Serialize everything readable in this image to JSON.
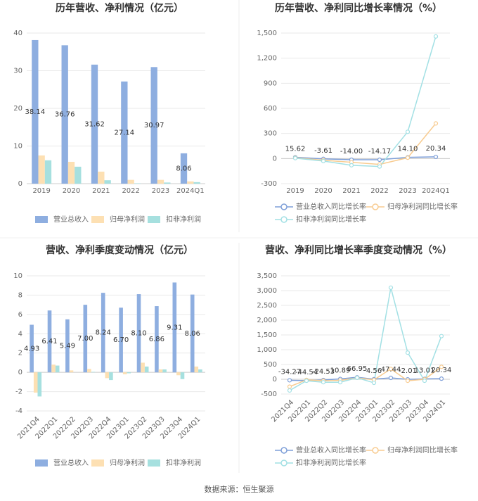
{
  "chart_data": [
    {
      "type": "bar",
      "title": "历年营收、净利情况（亿元）",
      "categories": [
        "2019",
        "2020",
        "2021",
        "2022",
        "2023",
        "2024Q1"
      ],
      "ylim": [
        0,
        40
      ],
      "yticks": [
        0,
        10,
        20,
        30,
        40
      ],
      "grid": true,
      "series": [
        {
          "name": "营业总收入",
          "color": "#8eaee0",
          "labels": true,
          "values": [
            38.14,
            36.76,
            31.62,
            27.14,
            30.97,
            8.06
          ]
        },
        {
          "name": "归母净利润",
          "color": "#fde0b3",
          "values": [
            7.5,
            5.8,
            3.2,
            1.0,
            1.0,
            0.6
          ]
        },
        {
          "name": "扣非净利润",
          "color": "#a6e0df",
          "values": [
            6.2,
            4.5,
            0.9,
            0.1,
            0.3,
            0.4
          ]
        }
      ]
    },
    {
      "type": "line",
      "title": "历年营收、净利同比增长率情况（%）",
      "categories": [
        "2019",
        "2020",
        "2021",
        "2022",
        "2023",
        "2024Q1"
      ],
      "ylim": [
        -300,
        1500
      ],
      "yticks": [
        -300,
        0,
        300,
        600,
        900,
        {
          "value": 1200,
          "label": "1,200"
        },
        {
          "value": 1500,
          "label": "1,500"
        }
      ],
      "grid": true,
      "series": [
        {
          "name": "营业总收入同比增长率",
          "color": "#7e9fd8",
          "labels": true,
          "values": [
            15.62,
            -3.61,
            -14.0,
            -14.17,
            14.1,
            20.34
          ],
          "value_labels": [
            "15.62",
            "-3.61",
            "-14.00",
            "-14.17",
            "14.10",
            "20.34"
          ]
        },
        {
          "name": "归母净利润同比增长率",
          "color": "#f8cc91",
          "values": [
            10,
            -20,
            -45,
            -70,
            10,
            420
          ]
        },
        {
          "name": "扣非净利润同比增长率",
          "color": "#a2e0e4",
          "values": [
            5,
            -30,
            -80,
            -95,
            320,
            1460
          ]
        }
      ]
    },
    {
      "type": "bar",
      "title": "营收、净利季度变动情况（亿元）",
      "categories": [
        "2021Q4",
        "2022Q1",
        "2022Q2",
        "2022Q3",
        "2022Q4",
        "2023Q1",
        "2023Q2",
        "2023Q3",
        "2023Q4",
        "2024Q1"
      ],
      "ylim": [
        -4,
        10
      ],
      "yticks": [
        -4,
        -2,
        0,
        2,
        4,
        6,
        8,
        10
      ],
      "grid": true,
      "series": [
        {
          "name": "营业总收入",
          "color": "#8eaee0",
          "labels": true,
          "values": [
            4.93,
            6.41,
            5.49,
            7.0,
            8.24,
            6.7,
            8.1,
            6.86,
            9.31,
            8.06
          ],
          "value_labels": [
            "4.93",
            "6.41",
            "5.49",
            "7.00",
            "8.24",
            "6.70",
            "8.10",
            "6.86",
            "9.31",
            "8.06"
          ]
        },
        {
          "name": "归母净利润",
          "color": "#fde0b3",
          "values": [
            -2.1,
            0.8,
            0.2,
            0.35,
            -0.6,
            -0.2,
            1.0,
            0.3,
            -0.3,
            0.6
          ]
        },
        {
          "name": "扣非净利润",
          "color": "#a6e0df",
          "values": [
            -2.5,
            0.7,
            0.0,
            0.05,
            -0.8,
            -0.1,
            0.6,
            0.3,
            -0.7,
            0.3
          ]
        }
      ]
    },
    {
      "type": "line",
      "title": "营收、净利同比增长率季度变动情况（%）",
      "categories": [
        "2021Q4",
        "2022Q1",
        "2022Q2",
        "2022Q3",
        "2022Q4",
        "2023Q1",
        "2023Q2",
        "2023Q3",
        "2023Q4",
        "2024Q1"
      ],
      "ylim": [
        -500,
        3500
      ],
      "yticks": [
        -500,
        0,
        500,
        {
          "value": 1000,
          "label": "1,000"
        },
        {
          "value": 1500,
          "label": "1,500"
        },
        {
          "value": 2000,
          "label": "2,000"
        },
        {
          "value": 2500,
          "label": "2,500"
        },
        {
          "value": 3000,
          "label": "3,000"
        },
        {
          "value": 3500,
          "label": "3,500"
        }
      ],
      "grid": true,
      "series": [
        {
          "name": "营业总收入同比增长率",
          "color": "#7e9fd8",
          "labels": true,
          "values": [
            -34.27,
            -44.54,
            -24.53,
            10.89,
            66.95,
            4.56,
            47.44,
            -2.01,
            13.01,
            20.34
          ]
        },
        {
          "name": "归母净利润同比增长率",
          "color": "#f8cc91",
          "values": [
            -250,
            -20,
            -50,
            -40,
            50,
            -20,
            350,
            -50,
            0,
            420
          ]
        },
        {
          "name": "扣非净利润同比增长率",
          "color": "#a2e0e4",
          "values": [
            -380,
            -50,
            -100,
            -100,
            50,
            -120,
            3100,
            900,
            -50,
            1460
          ]
        }
      ]
    }
  ],
  "source": "数据来源：恒生聚源"
}
